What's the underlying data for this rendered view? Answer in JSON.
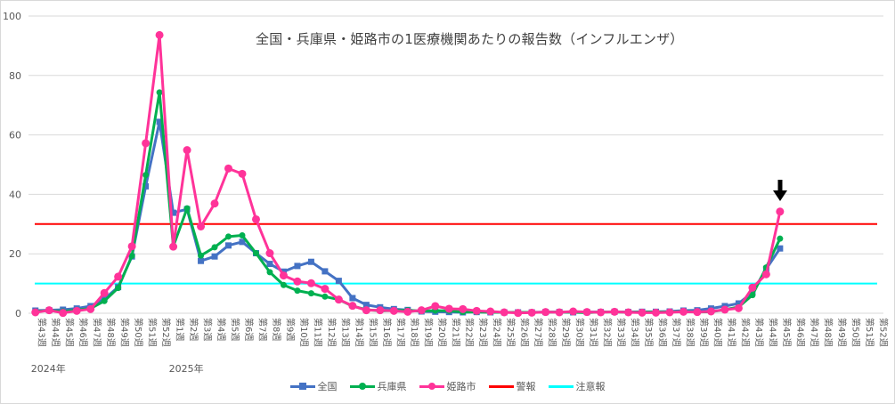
{
  "title": "全国・兵庫県・姫路市の1医療機関あたりの報告数（インフルエンザ）",
  "year_labels": [
    {
      "text": "2024年",
      "category_index": 0
    },
    {
      "text": "2025年",
      "category_index": 10
    }
  ],
  "legend": [
    {
      "key": "national",
      "label": "全国",
      "color": "#4472C4",
      "marker": "square"
    },
    {
      "key": "hyogo",
      "label": "兵庫県",
      "color": "#00B050",
      "marker": "circle"
    },
    {
      "key": "himeji",
      "label": "姫路市",
      "color": "#FF3399",
      "marker": "circle"
    },
    {
      "key": "warning",
      "label": "警報",
      "color": "#FF0000",
      "marker": "none"
    },
    {
      "key": "advisory",
      "label": "注意報",
      "color": "#00FFFF",
      "marker": "none"
    }
  ],
  "annotation": {
    "type": "down-arrow",
    "category": "第45週 (2025)",
    "color": "#000000"
  },
  "chart_data": {
    "type": "line",
    "title": "全国・兵庫県・姫路市の1医療機関あたりの報告数（インフルエンザ）",
    "xlabel": "",
    "ylabel": "",
    "ylim": [
      0,
      100
    ],
    "yticks": [
      0,
      20,
      40,
      60,
      80,
      100
    ],
    "grid": true,
    "legend_position": "bottom",
    "categories": [
      "第43週",
      "第44週",
      "第45週",
      "第46週",
      "第47週",
      "第48週",
      "第49週",
      "第50週",
      "第51週",
      "第52週",
      "第1週",
      "第2週",
      "第3週",
      "第4週",
      "第5週",
      "第6週",
      "第7週",
      "第8週",
      "第9週",
      "第10週",
      "第11週",
      "第12週",
      "第13週",
      "第14週",
      "第15週",
      "第16週",
      "第17週",
      "第18週",
      "第19週",
      "第20週",
      "第21週",
      "第22週",
      "第23週",
      "第24週",
      "第25週",
      "第26週",
      "第27週",
      "第28週",
      "第29週",
      "第30週",
      "第31週",
      "第32週",
      "第33週",
      "第34週",
      "第35週",
      "第36週",
      "第37週",
      "第38週",
      "第39週",
      "第40週",
      "第41週",
      "第42週",
      "第43週",
      "第44週",
      "第45週",
      "第46週",
      "第47週",
      "第48週",
      "第49週",
      "第50週",
      "第51週",
      "第52週"
    ],
    "series": [
      {
        "name": "全国",
        "values": [
          0.9,
          1.0,
          1.2,
          1.6,
          2.4,
          4.8,
          8.8,
          19.1,
          42.7,
          64.4,
          33.8,
          35.0,
          17.6,
          19.1,
          22.8,
          24.0,
          20.2,
          16.6,
          14.0,
          15.9,
          17.3,
          14.1,
          10.9,
          5.1,
          2.8,
          2.0,
          1.4,
          1.1,
          0.6,
          0.5,
          0.4,
          0.3,
          0.4,
          0.3,
          0.3,
          0.3,
          0.3,
          0.4,
          0.4,
          0.3,
          0.4,
          0.4,
          0.5,
          0.4,
          0.5,
          0.5,
          0.6,
          0.9,
          1.0,
          1.6,
          2.4,
          3.3,
          7.0,
          14.9,
          21.8,
          null,
          null,
          null,
          null,
          null,
          null,
          null
        ]
      },
      {
        "name": "兵庫県",
        "values": [
          0.6,
          0.9,
          0.6,
          1.1,
          1.6,
          4.1,
          8.5,
          19.3,
          46.5,
          74.3,
          22.5,
          35.3,
          19.4,
          22.2,
          25.8,
          26.2,
          20.2,
          13.8,
          9.5,
          7.6,
          6.7,
          5.6,
          4.6,
          2.4,
          1.2,
          0.8,
          0.9,
          1.0,
          0.7,
          0.9,
          0.8,
          0.4,
          0.4,
          0.3,
          0.3,
          0.3,
          0.3,
          0.3,
          0.4,
          0.3,
          0.2,
          0.4,
          0.4,
          0.3,
          0.4,
          0.4,
          0.4,
          0.6,
          0.4,
          0.5,
          1.2,
          2.1,
          6.1,
          15.4,
          25.1,
          null,
          null,
          null,
          null,
          null,
          null,
          null
        ]
      },
      {
        "name": "姫路市",
        "values": [
          0.3,
          1.0,
          0.1,
          0.8,
          1.4,
          6.8,
          12.3,
          22.5,
          57.2,
          93.6,
          22.4,
          54.9,
          29.2,
          36.9,
          48.7,
          46.9,
          31.6,
          20.2,
          12.7,
          10.7,
          10.1,
          8.2,
          4.6,
          2.5,
          1.0,
          1.0,
          0.8,
          0.5,
          1.0,
          2.4,
          1.5,
          1.4,
          0.8,
          0.6,
          0.3,
          0.1,
          0.2,
          0.4,
          0.3,
          0.6,
          0.4,
          0.3,
          0.5,
          0.3,
          0.2,
          0.2,
          0.3,
          0.5,
          0.4,
          0.6,
          1.2,
          1.7,
          8.6,
          13.1,
          34.2,
          null,
          null,
          null,
          null,
          null,
          null,
          null
        ]
      },
      {
        "name": "警報",
        "values": [
          30,
          30,
          30,
          30,
          30,
          30,
          30,
          30,
          30,
          30,
          30,
          30,
          30,
          30,
          30,
          30,
          30,
          30,
          30,
          30,
          30,
          30,
          30,
          30,
          30,
          30,
          30,
          30,
          30,
          30,
          30,
          30,
          30,
          30,
          30,
          30,
          30,
          30,
          30,
          30,
          30,
          30,
          30,
          30,
          30,
          30,
          30,
          30,
          30,
          30,
          30,
          30,
          30,
          30,
          30,
          30,
          30,
          30,
          30,
          30,
          30,
          30
        ]
      },
      {
        "name": "注意報",
        "values": [
          10,
          10,
          10,
          10,
          10,
          10,
          10,
          10,
          10,
          10,
          10,
          10,
          10,
          10,
          10,
          10,
          10,
          10,
          10,
          10,
          10,
          10,
          10,
          10,
          10,
          10,
          10,
          10,
          10,
          10,
          10,
          10,
          10,
          10,
          10,
          10,
          10,
          10,
          10,
          10,
          10,
          10,
          10,
          10,
          10,
          10,
          10,
          10,
          10,
          10,
          10,
          10,
          10,
          10,
          10,
          10,
          10,
          10,
          10,
          10,
          10,
          10
        ]
      }
    ]
  }
}
